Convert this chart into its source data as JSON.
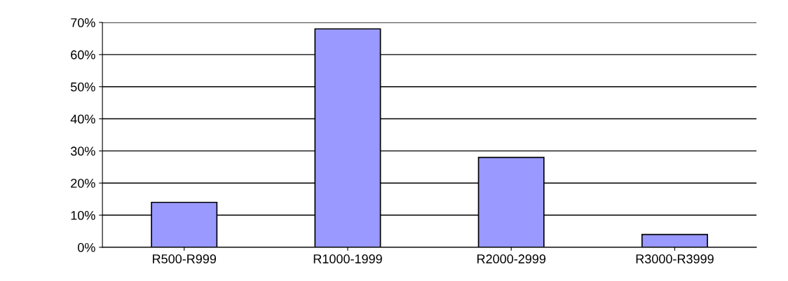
{
  "chart_data": {
    "type": "bar",
    "categories": [
      "R500-R999",
      "R1000-1999",
      "R2000-2999",
      "R3000-R3999"
    ],
    "values": [
      14,
      68,
      28,
      4
    ],
    "color": "#9999ff",
    "ylim": [
      0,
      70
    ],
    "yticks": [
      {
        "value": 0,
        "label": "0%"
      },
      {
        "value": 10,
        "label": "10%"
      },
      {
        "value": 20,
        "label": "20%"
      },
      {
        "value": 30,
        "label": "30%"
      },
      {
        "value": 40,
        "label": "40%"
      },
      {
        "value": 50,
        "label": "50%"
      },
      {
        "value": 60,
        "label": "60%"
      },
      {
        "value": 70,
        "label": "70%"
      }
    ],
    "grid": "y"
  }
}
